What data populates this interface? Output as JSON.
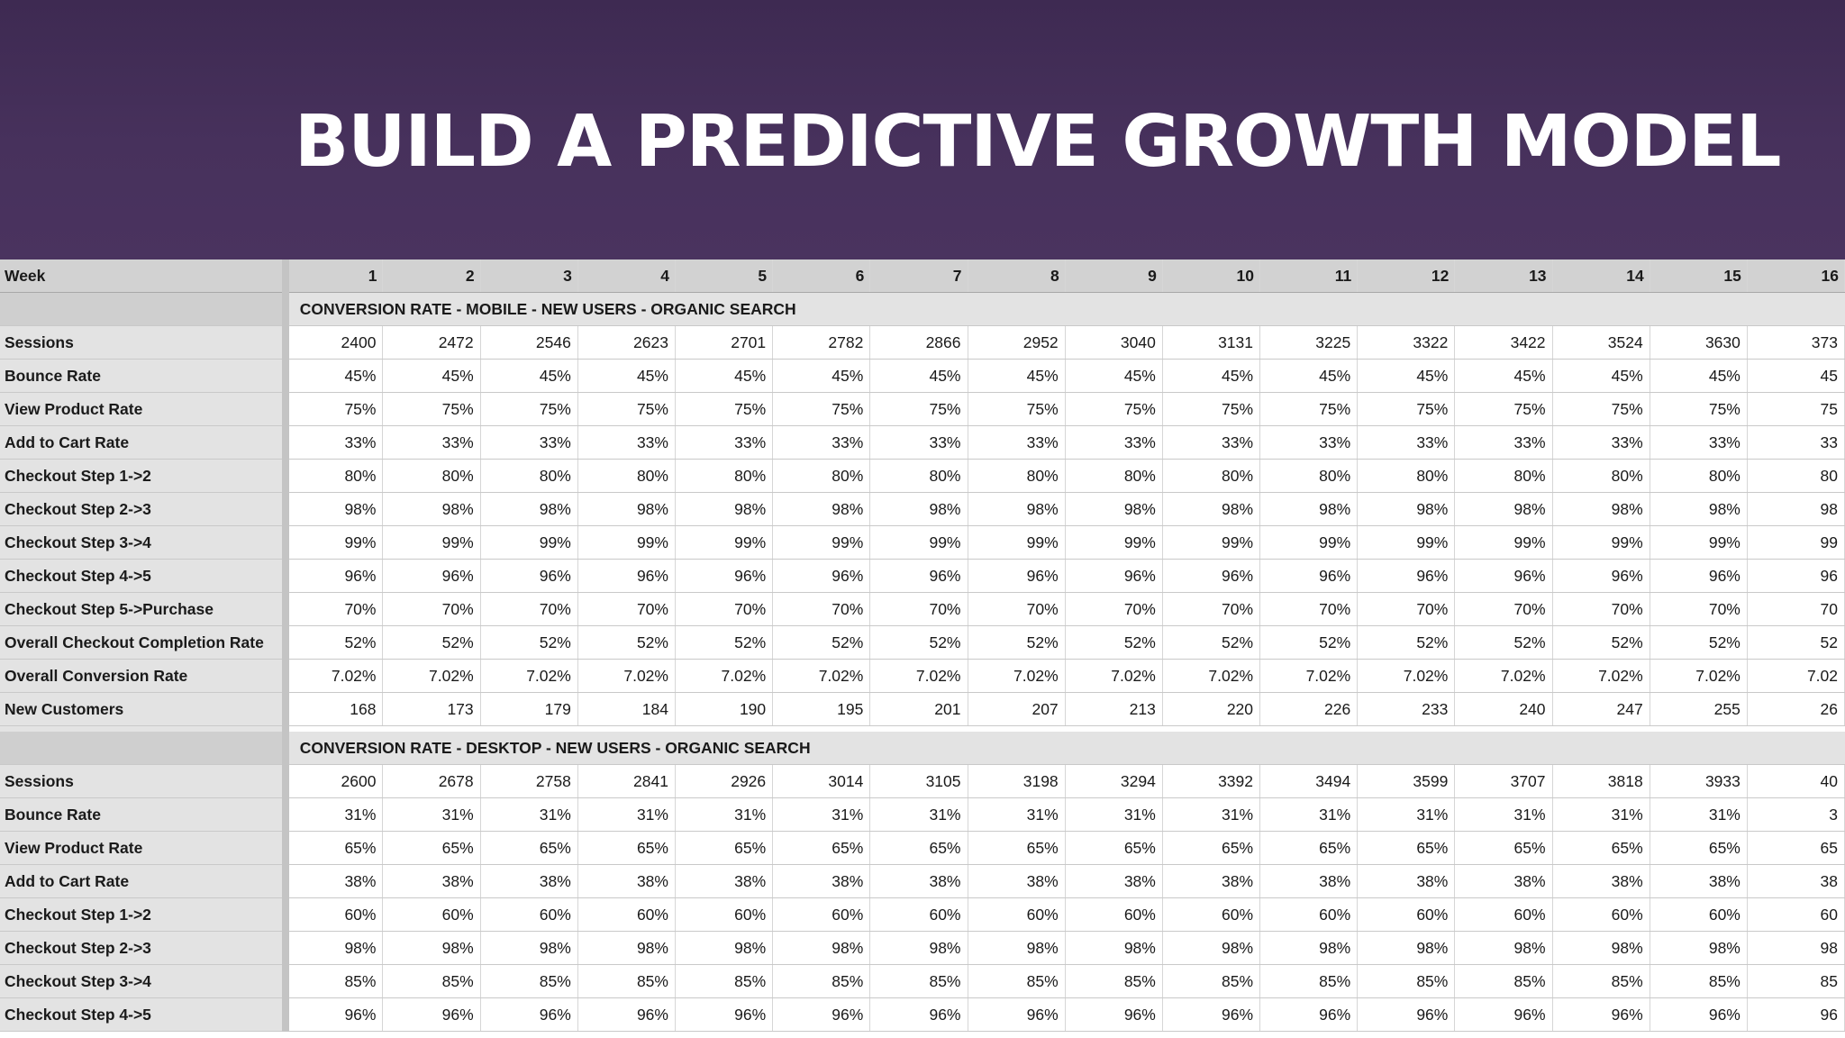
{
  "title": "BUILD A PREDICTIVE GROWTH MODEL",
  "table": {
    "header_label": "Week",
    "weeks": [
      "1",
      "2",
      "3",
      "4",
      "5",
      "6",
      "7",
      "8",
      "9",
      "10",
      "11",
      "12",
      "13",
      "14",
      "15",
      "16"
    ],
    "sections": [
      {
        "title": "CONVERSION RATE  - MOBILE - NEW USERS - ORGANIC SEARCH",
        "rows": [
          {
            "label": "Sessions",
            "values": [
              "2400",
              "2472",
              "2546",
              "2623",
              "2701",
              "2782",
              "2866",
              "2952",
              "3040",
              "3131",
              "3225",
              "3322",
              "3422",
              "3524",
              "3630",
              "373"
            ]
          },
          {
            "label": "Bounce Rate",
            "values": [
              "45%",
              "45%",
              "45%",
              "45%",
              "45%",
              "45%",
              "45%",
              "45%",
              "45%",
              "45%",
              "45%",
              "45%",
              "45%",
              "45%",
              "45%",
              "45"
            ]
          },
          {
            "label": "View Product Rate",
            "values": [
              "75%",
              "75%",
              "75%",
              "75%",
              "75%",
              "75%",
              "75%",
              "75%",
              "75%",
              "75%",
              "75%",
              "75%",
              "75%",
              "75%",
              "75%",
              "75"
            ]
          },
          {
            "label": "Add to Cart Rate",
            "values": [
              "33%",
              "33%",
              "33%",
              "33%",
              "33%",
              "33%",
              "33%",
              "33%",
              "33%",
              "33%",
              "33%",
              "33%",
              "33%",
              "33%",
              "33%",
              "33"
            ]
          },
          {
            "label": "Checkout Step 1->2",
            "values": [
              "80%",
              "80%",
              "80%",
              "80%",
              "80%",
              "80%",
              "80%",
              "80%",
              "80%",
              "80%",
              "80%",
              "80%",
              "80%",
              "80%",
              "80%",
              "80"
            ]
          },
          {
            "label": "Checkout Step 2->3",
            "values": [
              "98%",
              "98%",
              "98%",
              "98%",
              "98%",
              "98%",
              "98%",
              "98%",
              "98%",
              "98%",
              "98%",
              "98%",
              "98%",
              "98%",
              "98%",
              "98"
            ]
          },
          {
            "label": "Checkout Step 3->4",
            "values": [
              "99%",
              "99%",
              "99%",
              "99%",
              "99%",
              "99%",
              "99%",
              "99%",
              "99%",
              "99%",
              "99%",
              "99%",
              "99%",
              "99%",
              "99%",
              "99"
            ]
          },
          {
            "label": "Checkout Step 4->5",
            "values": [
              "96%",
              "96%",
              "96%",
              "96%",
              "96%",
              "96%",
              "96%",
              "96%",
              "96%",
              "96%",
              "96%",
              "96%",
              "96%",
              "96%",
              "96%",
              "96"
            ]
          },
          {
            "label": "Checkout Step 5->Purchase",
            "values": [
              "70%",
              "70%",
              "70%",
              "70%",
              "70%",
              "70%",
              "70%",
              "70%",
              "70%",
              "70%",
              "70%",
              "70%",
              "70%",
              "70%",
              "70%",
              "70"
            ]
          },
          {
            "label": "Overall Checkout Completion Rate",
            "values": [
              "52%",
              "52%",
              "52%",
              "52%",
              "52%",
              "52%",
              "52%",
              "52%",
              "52%",
              "52%",
              "52%",
              "52%",
              "52%",
              "52%",
              "52%",
              "52"
            ]
          },
          {
            "label": "Overall Conversion Rate",
            "values": [
              "7.02%",
              "7.02%",
              "7.02%",
              "7.02%",
              "7.02%",
              "7.02%",
              "7.02%",
              "7.02%",
              "7.02%",
              "7.02%",
              "7.02%",
              "7.02%",
              "7.02%",
              "7.02%",
              "7.02%",
              "7.02"
            ]
          },
          {
            "label": "New Customers",
            "values": [
              "168",
              "173",
              "179",
              "184",
              "190",
              "195",
              "201",
              "207",
              "213",
              "220",
              "226",
              "233",
              "240",
              "247",
              "255",
              "26"
            ]
          }
        ]
      },
      {
        "title": "CONVERSION RATE  - DESKTOP - NEW USERS - ORGANIC SEARCH",
        "rows": [
          {
            "label": "Sessions",
            "values": [
              "2600",
              "2678",
              "2758",
              "2841",
              "2926",
              "3014",
              "3105",
              "3198",
              "3294",
              "3392",
              "3494",
              "3599",
              "3707",
              "3818",
              "3933",
              "40"
            ]
          },
          {
            "label": "Bounce Rate",
            "values": [
              "31%",
              "31%",
              "31%",
              "31%",
              "31%",
              "31%",
              "31%",
              "31%",
              "31%",
              "31%",
              "31%",
              "31%",
              "31%",
              "31%",
              "31%",
              "3"
            ]
          },
          {
            "label": "View Product Rate",
            "values": [
              "65%",
              "65%",
              "65%",
              "65%",
              "65%",
              "65%",
              "65%",
              "65%",
              "65%",
              "65%",
              "65%",
              "65%",
              "65%",
              "65%",
              "65%",
              "65"
            ]
          },
          {
            "label": "Add to Cart Rate",
            "values": [
              "38%",
              "38%",
              "38%",
              "38%",
              "38%",
              "38%",
              "38%",
              "38%",
              "38%",
              "38%",
              "38%",
              "38%",
              "38%",
              "38%",
              "38%",
              "38"
            ]
          },
          {
            "label": "Checkout Step 1->2",
            "values": [
              "60%",
              "60%",
              "60%",
              "60%",
              "60%",
              "60%",
              "60%",
              "60%",
              "60%",
              "60%",
              "60%",
              "60%",
              "60%",
              "60%",
              "60%",
              "60"
            ]
          },
          {
            "label": "Checkout Step 2->3",
            "values": [
              "98%",
              "98%",
              "98%",
              "98%",
              "98%",
              "98%",
              "98%",
              "98%",
              "98%",
              "98%",
              "98%",
              "98%",
              "98%",
              "98%",
              "98%",
              "98"
            ]
          },
          {
            "label": "Checkout Step 3->4",
            "values": [
              "85%",
              "85%",
              "85%",
              "85%",
              "85%",
              "85%",
              "85%",
              "85%",
              "85%",
              "85%",
              "85%",
              "85%",
              "85%",
              "85%",
              "85%",
              "85"
            ]
          },
          {
            "label": "Checkout Step 4->5",
            "values": [
              "96%",
              "96%",
              "96%",
              "96%",
              "96%",
              "96%",
              "96%",
              "96%",
              "96%",
              "96%",
              "96%",
              "96%",
              "96%",
              "96%",
              "96%",
              "96"
            ]
          }
        ]
      }
    ]
  }
}
